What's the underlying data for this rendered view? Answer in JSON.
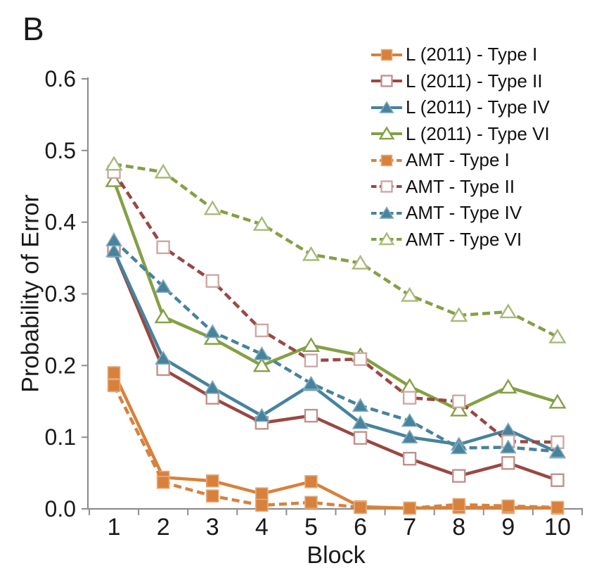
{
  "panel_label": "B",
  "colors": {
    "axis": "#8e8e8e",
    "text": "#1a1a1a",
    "background": "#ffffff",
    "orange": "#d8813c",
    "maroon": "#9a4742",
    "teal": "#47839c",
    "olive": "#84a044"
  },
  "chart_data": {
    "type": "line",
    "title": "",
    "xlabel": "Block",
    "ylabel": "Probability of Error",
    "x": [
      1,
      2,
      3,
      4,
      5,
      6,
      7,
      8,
      9,
      10
    ],
    "ylim": [
      0.0,
      0.6
    ],
    "yticks": [
      "0.0",
      "0.1",
      "0.2",
      "0.3",
      "0.4",
      "0.5",
      "0.6"
    ],
    "grid": false,
    "legend_position": "top-right",
    "series": [
      {
        "name": "L (2011) - Type I",
        "line": "solid",
        "marker": "square",
        "fill": "filled",
        "color": "#d8813c",
        "edge": "#e4ab7c",
        "values": [
          0.19,
          0.044,
          0.039,
          0.021,
          0.038,
          0.003,
          0.001,
          0.002,
          0.002,
          0.001
        ]
      },
      {
        "name": "L (2011) - Type II",
        "line": "solid",
        "marker": "square",
        "fill": "open",
        "color": "#9a4742",
        "edge": "#c0918d",
        "values": [
          0.36,
          0.195,
          0.155,
          0.12,
          0.13,
          0.099,
          0.07,
          0.046,
          0.064,
          0.04
        ]
      },
      {
        "name": "L (2011) - Type IV",
        "line": "solid",
        "marker": "triangle",
        "fill": "filled",
        "color": "#47839c",
        "edge": "#82abbe",
        "values": [
          0.36,
          0.21,
          0.169,
          0.13,
          0.173,
          0.12,
          0.1,
          0.09,
          0.11,
          0.079
        ]
      },
      {
        "name": "L (2011) - Type VI",
        "line": "solid",
        "marker": "triangle",
        "fill": "open",
        "color": "#84a044",
        "edge": "#84a044",
        "values": [
          0.458,
          0.268,
          0.238,
          0.2,
          0.228,
          0.214,
          0.171,
          0.138,
          0.17,
          0.149
        ]
      },
      {
        "name": "AMT - Type I",
        "line": "dashed",
        "marker": "square",
        "fill": "filled",
        "color": "#d8813c",
        "edge": "#e4ab7c",
        "values": [
          0.172,
          0.037,
          0.018,
          0.005,
          0.009,
          0.002,
          0.001,
          0.006,
          0.004,
          0.002
        ]
      },
      {
        "name": "AMT - Type II",
        "line": "dashed",
        "marker": "square",
        "fill": "open",
        "color": "#9a4742",
        "edge": "#cda8a4",
        "values": [
          0.47,
          0.365,
          0.318,
          0.249,
          0.207,
          0.209,
          0.155,
          0.15,
          0.094,
          0.093
        ]
      },
      {
        "name": "AMT - Type IV",
        "line": "dashed",
        "marker": "triangle",
        "fill": "filled",
        "color": "#47839c",
        "edge": "#82abbe",
        "values": [
          0.375,
          0.31,
          0.247,
          0.216,
          0.175,
          0.144,
          0.123,
          0.085,
          0.086,
          0.08
        ]
      },
      {
        "name": "AMT - Type VI",
        "line": "dashed",
        "marker": "triangle",
        "fill": "open",
        "color": "#84a044",
        "edge": "#a6ba79",
        "values": [
          0.481,
          0.47,
          0.419,
          0.397,
          0.355,
          0.343,
          0.298,
          0.27,
          0.275,
          0.24
        ]
      }
    ]
  }
}
